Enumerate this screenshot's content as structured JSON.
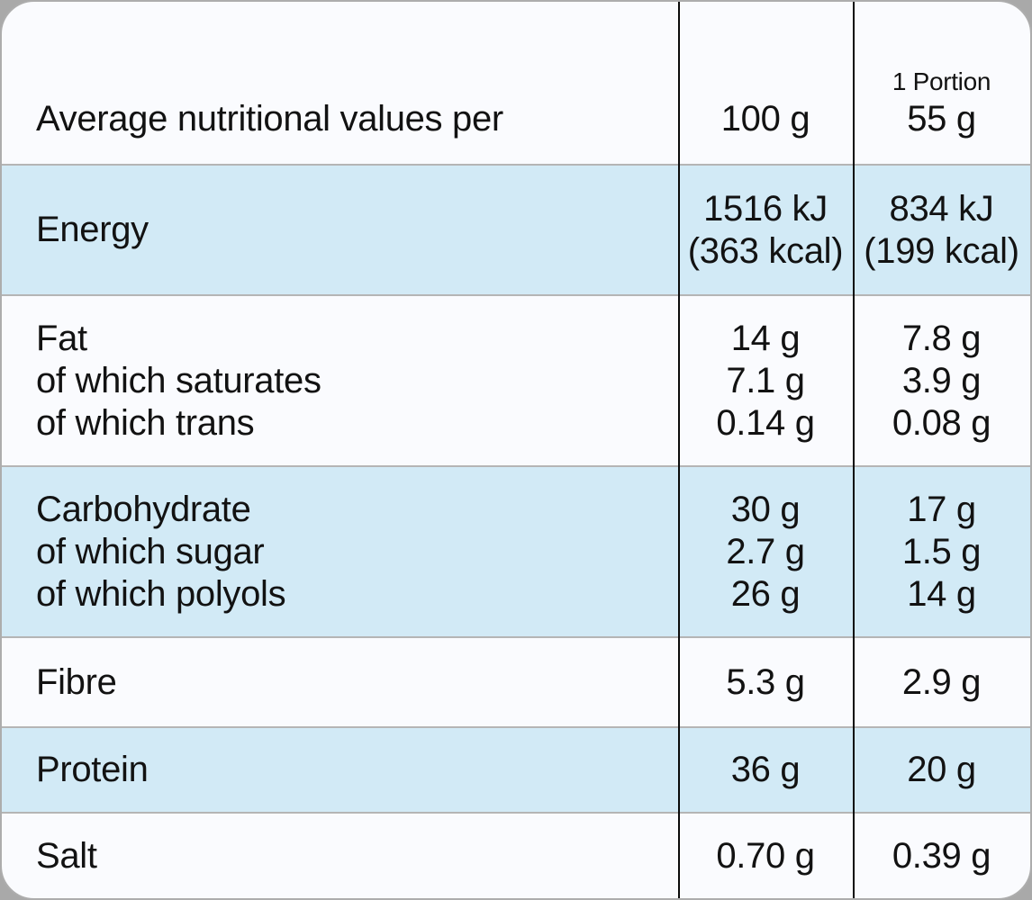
{
  "table": {
    "title_note": "nutrition-facts-table",
    "header": {
      "label": "Average nutritional values per",
      "per_100g": "100 g",
      "portion_label": "1 Portion",
      "portion_amount": "55 g"
    },
    "rows": [
      {
        "name": "energy",
        "labels": [
          "Energy"
        ],
        "per_100g": [
          "1516 kJ",
          "(363 kcal)"
        ],
        "per_portion": [
          "834 kJ",
          "(199 kcal)"
        ],
        "shaded": true
      },
      {
        "name": "fat",
        "labels": [
          "Fat",
          "of which saturates",
          "of which trans"
        ],
        "per_100g": [
          "14 g",
          "7.1 g",
          "0.14 g"
        ],
        "per_portion": [
          "7.8 g",
          "3.9 g",
          "0.08 g"
        ],
        "shaded": false
      },
      {
        "name": "carbohydrate",
        "labels": [
          "Carbohydrate",
          "of which sugar",
          "of which polyols"
        ],
        "per_100g": [
          "30 g",
          "2.7 g",
          "26 g"
        ],
        "per_portion": [
          "17 g",
          "1.5 g",
          "14 g"
        ],
        "shaded": true
      },
      {
        "name": "fibre",
        "labels": [
          "Fibre"
        ],
        "per_100g": [
          "5.3 g"
        ],
        "per_portion": [
          "2.9 g"
        ],
        "shaded": false
      },
      {
        "name": "protein",
        "labels": [
          "Protein"
        ],
        "per_100g": [
          "36 g"
        ],
        "per_portion": [
          "20 g"
        ],
        "shaded": true
      },
      {
        "name": "salt",
        "labels": [
          "Salt"
        ],
        "per_100g": [
          "0.70 g"
        ],
        "per_portion": [
          "0.39 g"
        ],
        "shaded": false
      }
    ],
    "colors": {
      "shaded_row": "#d2eaf6",
      "card_background": "#fafbfe",
      "page_background": "#a9a9a9",
      "row_divider": "#b5b5b5",
      "column_rule": "#0a0a0a",
      "text": "#121212"
    }
  }
}
